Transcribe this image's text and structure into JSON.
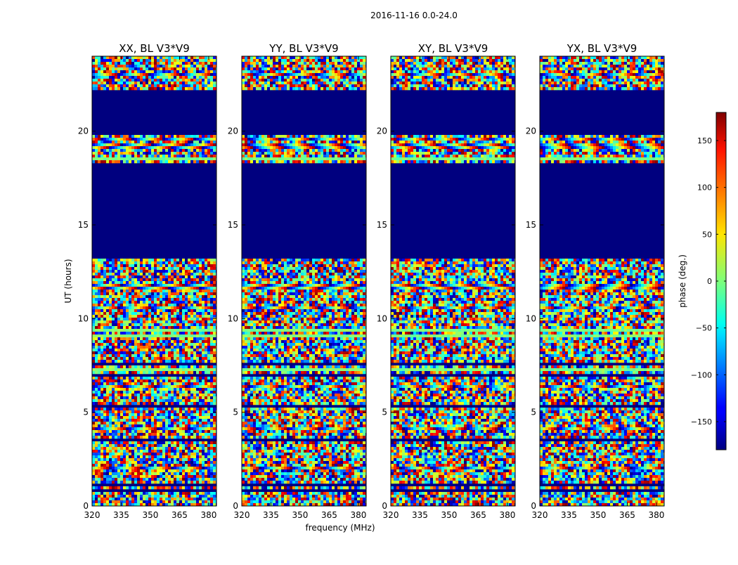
{
  "figure": {
    "suptitle": "2016-11-16 0.0-24.0"
  },
  "chart_data": {
    "type": "heatmap",
    "title": "2016-11-16 0.0-24.0",
    "xlabel": "frequency (MHz)",
    "ylabel": "UT (hours)",
    "xlim": [
      320,
      384
    ],
    "ylim": [
      0,
      24
    ],
    "x_ticks": [
      320,
      335,
      350,
      365,
      380
    ],
    "y_ticks": [
      0,
      5,
      10,
      15,
      20
    ],
    "panels": [
      {
        "title": "XX, BL V3*V9",
        "polarization": "XX",
        "baseline": "V3*V9"
      },
      {
        "title": "YY, BL V3*V9",
        "polarization": "YY",
        "baseline": "V3*V9"
      },
      {
        "title": "XY, BL V3*V9",
        "polarization": "XY",
        "baseline": "V3*V9"
      },
      {
        "title": "YX, BL V3*V9",
        "polarization": "YX",
        "baseline": "V3*V9"
      }
    ],
    "flagged_gaps_hours": [
      [
        13.2,
        18.3
      ],
      [
        19.8,
        22.2
      ]
    ],
    "colorbar": {
      "label": "phase (deg.)",
      "range": [
        -180,
        180
      ],
      "ticks": [
        -150,
        -100,
        -50,
        0,
        50,
        100,
        150
      ],
      "colormap": "jet"
    }
  }
}
